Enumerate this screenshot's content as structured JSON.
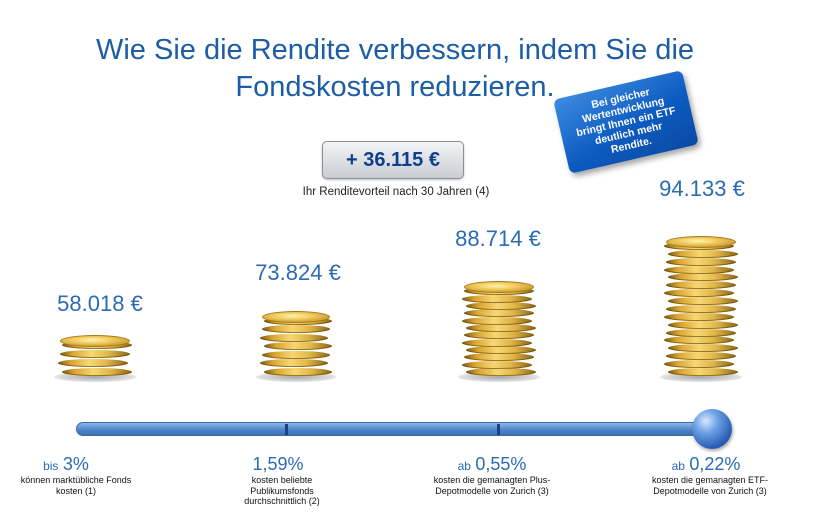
{
  "title": {
    "line1": "Wie Sie die Rendite verbessern, indem Sie die",
    "line2": "Fondskosten reduzieren."
  },
  "badge": {
    "text": "Bei gleicher Wertentwicklung bringt Ihnen ein ETF deutlich mehr Rendite."
  },
  "advantage": {
    "value": "+ 36.115 €",
    "caption": "Ihr Renditevorteil nach 30 Jahren (4)"
  },
  "options": [
    {
      "amount": "58.018 €",
      "prefix": "bis",
      "percent": "3%",
      "desc": "können marktübliche Fonds kosten (1)",
      "coins": 4
    },
    {
      "amount": "73.824 €",
      "prefix": "",
      "percent": "1,59%",
      "desc": "kosten beliebte Publikumsfonds durchschnittlich (2)",
      "coins": 7
    },
    {
      "amount": "88.714 €",
      "prefix": "ab",
      "percent": "0,55%",
      "desc": "kosten die gemanagten Plus-Depotmodelle von Zurich (3)",
      "coins": 12
    },
    {
      "amount": "94.133 €",
      "prefix": "ab",
      "percent": "0,22%",
      "desc": "kosten die gemanagten ETF-Depotmodelle von Zurich (3)",
      "coins": 17
    }
  ],
  "colors": {
    "accent": "#2a6bb3",
    "title": "#1d5da6",
    "coin": "#e0b548"
  }
}
